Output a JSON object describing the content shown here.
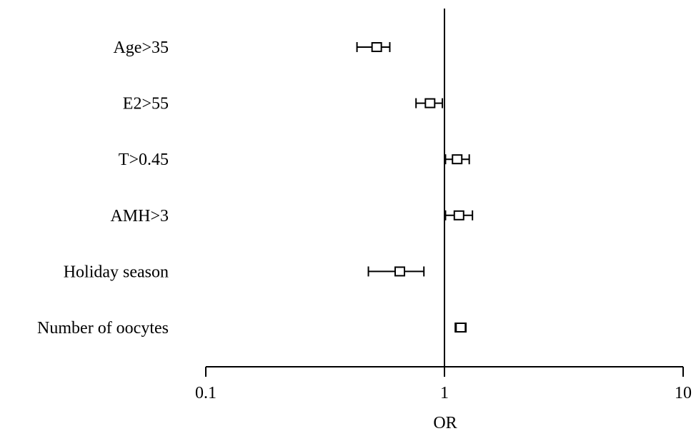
{
  "chart_data": {
    "type": "forest",
    "xlabel": "OR",
    "x_scale": "log",
    "xlim": [
      0.1,
      10
    ],
    "x_ticks": [
      {
        "value": 0.1,
        "label": "0.1"
      },
      {
        "value": 1,
        "label": "1"
      },
      {
        "value": 10,
        "label": "10"
      }
    ],
    "reference_line": 1,
    "grid": false,
    "rows": [
      {
        "label": "Age>35",
        "or": 0.52,
        "lower": 0.43,
        "upper": 0.59
      },
      {
        "label": "E2>55",
        "or": 0.87,
        "lower": 0.76,
        "upper": 0.98
      },
      {
        "label": "T>0.45",
        "or": 1.13,
        "lower": 1.01,
        "upper": 1.27
      },
      {
        "label": "AMH>3",
        "or": 1.15,
        "lower": 1.01,
        "upper": 1.31
      },
      {
        "label": "Holiday season",
        "or": 0.65,
        "lower": 0.48,
        "upper": 0.82
      },
      {
        "label": "Number of oocytes",
        "or": 1.17,
        "lower": 1.11,
        "upper": 1.23
      }
    ]
  }
}
